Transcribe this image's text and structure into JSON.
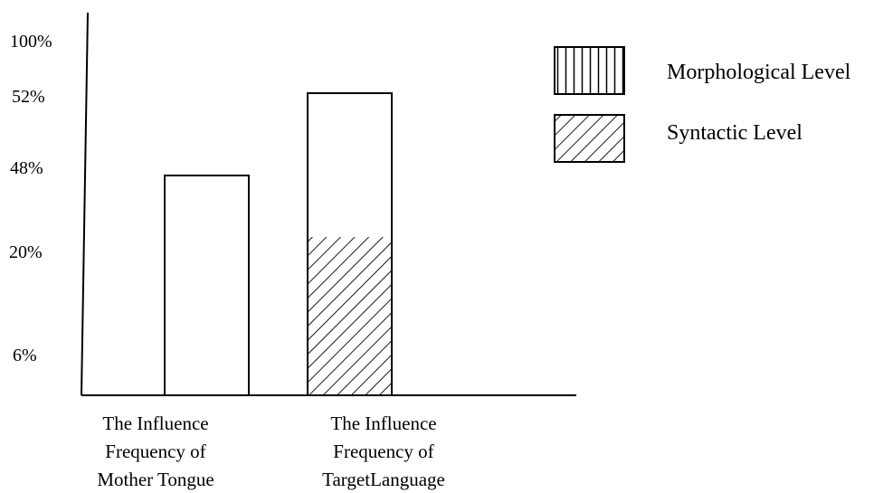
{
  "chart_data": {
    "type": "bar",
    "y_tick_labels": [
      "100%",
      "52%",
      "48%",
      "20%",
      "6%"
    ],
    "categories": [
      [
        "The Influence",
        "Frequency of",
        "Mother Tongue"
      ],
      [
        "The Influence",
        "Frequency of",
        "TargetLanguage"
      ]
    ],
    "bars": [
      {
        "category_index": 0,
        "total": 48,
        "syntactic": 0
      },
      {
        "category_index": 1,
        "total": 52,
        "syntactic": 20
      }
    ],
    "legend": [
      {
        "label": "Morphological Level",
        "pattern": "vertical-lines"
      },
      {
        "label": "Syntactic Level",
        "pattern": "diagonal-lines"
      }
    ],
    "legend_position": "top-right",
    "grid": false,
    "colors": {
      "stroke": "#000000",
      "background": "#ffffff"
    }
  }
}
